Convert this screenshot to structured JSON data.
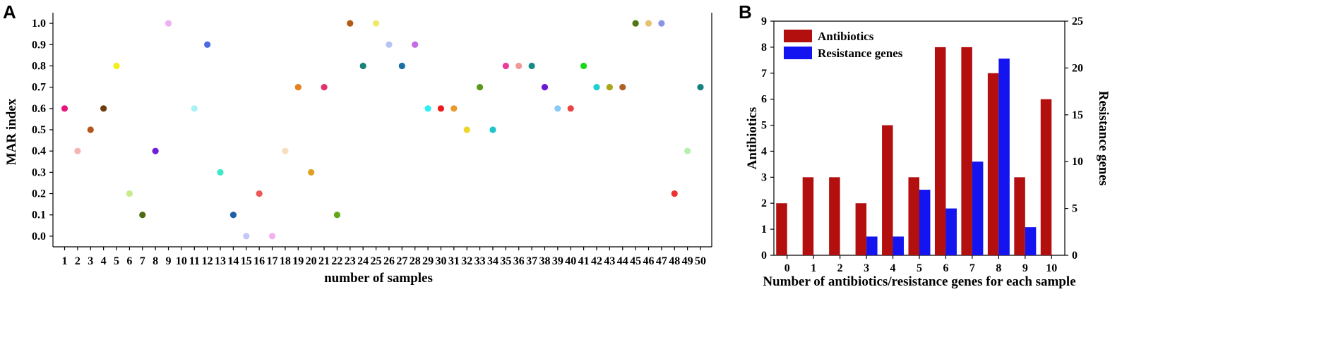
{
  "chart_data": [
    {
      "panel_label": "A",
      "type": "scatter",
      "xlabel": "number of samples",
      "ylabel": "MAR index",
      "ylim": [
        -0.05,
        1.05
      ],
      "yticks": [
        "0.0",
        "0.1",
        "0.2",
        "0.3",
        "0.4",
        "0.5",
        "0.6",
        "0.7",
        "0.8",
        "0.9",
        "1.0"
      ],
      "ytick_values": [
        0.0,
        0.1,
        0.2,
        0.3,
        0.4,
        0.5,
        0.6,
        0.7,
        0.8,
        0.9,
        1.0
      ],
      "grid": false,
      "x": [
        1,
        2,
        3,
        4,
        5,
        6,
        7,
        8,
        9,
        10,
        11,
        12,
        13,
        14,
        15,
        16,
        17,
        18,
        19,
        20,
        21,
        22,
        23,
        24,
        25,
        26,
        27,
        28,
        29,
        30,
        31,
        32,
        33,
        34,
        35,
        36,
        37,
        38,
        39,
        40,
        41,
        42,
        43,
        44,
        45,
        46,
        47,
        48,
        49,
        50
      ],
      "y": [
        0.6,
        0.4,
        0.5,
        0.6,
        0.8,
        0.2,
        0.1,
        0.4,
        1.0,
        null,
        0.6,
        0.9,
        0.3,
        0.1,
        0.0,
        0.2,
        0.0,
        0.4,
        0.7,
        0.3,
        0.7,
        0.1,
        1.0,
        0.8,
        1.0,
        0.9,
        0.8,
        0.9,
        0.6,
        0.6,
        0.6,
        0.5,
        0.7,
        0.5,
        0.8,
        0.8,
        0.8,
        0.7,
        0.6,
        0.6,
        0.8,
        0.7,
        0.7,
        0.7,
        1.0,
        1.0,
        1.0,
        0.2,
        0.4,
        0.7
      ],
      "colors": [
        "#e6157a",
        "#f4b4b4",
        "#b5561b",
        "#6b3d0e",
        "#f2ee18",
        "#c6ec8a",
        "#4e6b13",
        "#6f1fd8",
        "#f0b0f0",
        "#ffffff",
        "#a9f1f4",
        "#4d69e3",
        "#3fe8c8",
        "#1f5ea8",
        "#c4c6f6",
        "#ee5757",
        "#f2b2f2",
        "#f7dec0",
        "#e58220",
        "#e0a024",
        "#e0346c",
        "#62a818",
        "#b35a15",
        "#18827a",
        "#f0ea6a",
        "#b5c4f6",
        "#1a6fa4",
        "#c36ce6",
        "#2af0f4",
        "#ee1a1a",
        "#e89a2a",
        "#ecd82a",
        "#5a9a1a",
        "#20c4cc",
        "#ee3a9a",
        "#f29a9a",
        "#1a8a86",
        "#6818d4",
        "#8acaf6",
        "#ee4242",
        "#18d818",
        "#1ed0d0",
        "#aaa418",
        "#b06024",
        "#4e7612",
        "#e6c272",
        "#8a94e8",
        "#ee3030",
        "#b6f0b0",
        "#198080"
      ]
    },
    {
      "panel_label": "B",
      "type": "bar",
      "xlabel": "Number of antibiotics/resistance genes for each sample",
      "ylabel": "Antibiotics",
      "ylabel_right": "Resistance genes",
      "categories": [
        "0",
        "1",
        "2",
        "3",
        "4",
        "5",
        "6",
        "7",
        "8",
        "9",
        "10"
      ],
      "ylim": [
        0,
        9
      ],
      "ylim_right": [
        0,
        25
      ],
      "yticks": [
        "0",
        "1",
        "2",
        "3",
        "4",
        "5",
        "6",
        "7",
        "8",
        "9"
      ],
      "yticks_right": [
        "0",
        "5",
        "10",
        "15",
        "20",
        "25"
      ],
      "legend_position": "top-left",
      "series": [
        {
          "name": "Antibiotics",
          "axis": "left",
          "color": "#b30f0f",
          "values": [
            2,
            3,
            3,
            2,
            5,
            3,
            8,
            8,
            7,
            3,
            6
          ]
        },
        {
          "name": "Resistance genes",
          "axis": "right",
          "color": "#1414f0",
          "values": [
            0,
            0,
            0,
            2,
            2,
            7,
            5,
            10,
            21,
            3,
            0
          ]
        }
      ]
    }
  ]
}
